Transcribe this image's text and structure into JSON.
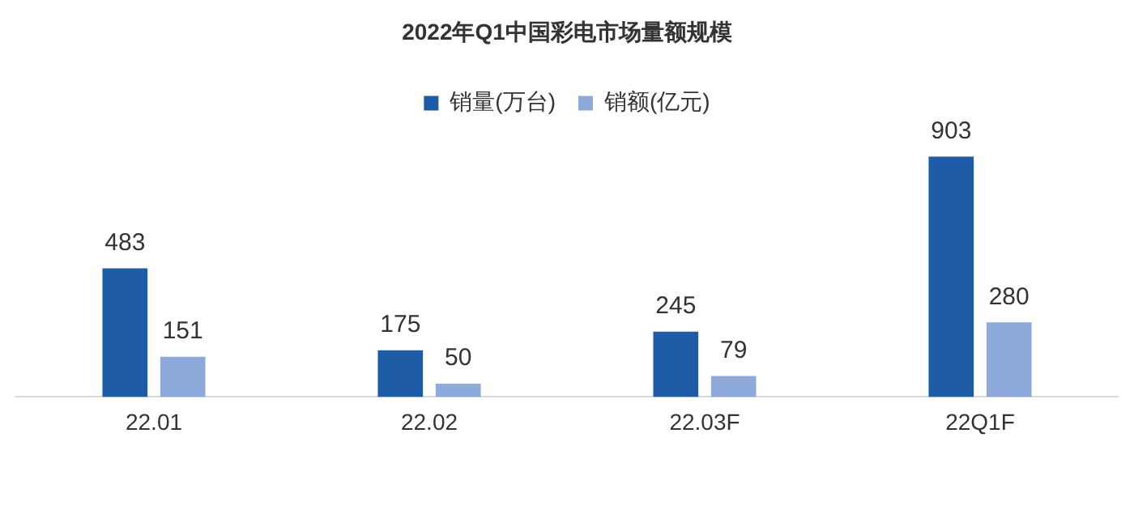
{
  "chart_data": {
    "type": "bar",
    "title": "2022年Q1中国彩电市场量额规模",
    "categories": [
      "22.01",
      "22.02",
      "22.03F",
      "22Q1F"
    ],
    "series": [
      {
        "name": "销量(万台)",
        "color": "#1f5ca8",
        "values": [
          483,
          175,
          245,
          903
        ]
      },
      {
        "name": "销额(亿元)",
        "color": "#8eaadb",
        "values": [
          151,
          50,
          79,
          280
        ]
      }
    ],
    "data_labels": true,
    "legend": "top",
    "grid": false,
    "tick_labels": "x"
  }
}
